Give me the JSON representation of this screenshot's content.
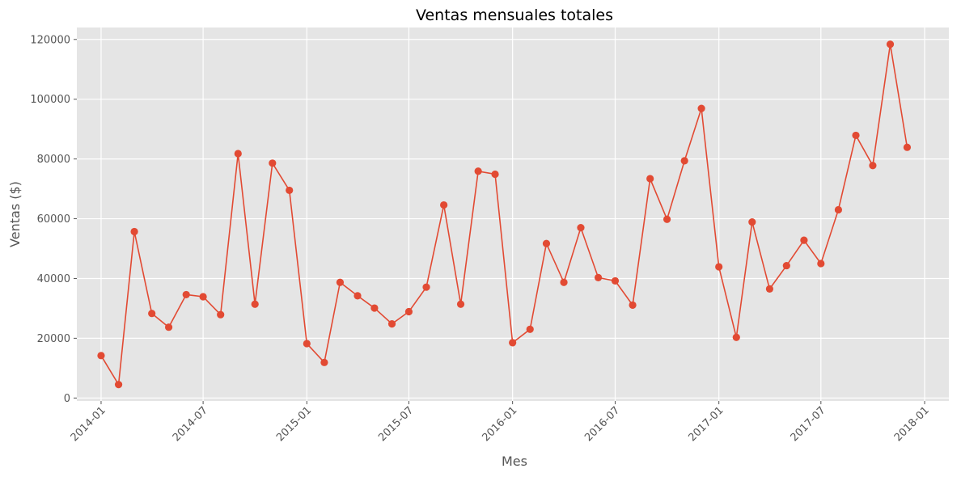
{
  "chart_data": {
    "type": "line",
    "title": "Ventas mensuales totales",
    "xlabel": "Mes",
    "ylabel": "Ventas ($)",
    "x": [
      "2014-01",
      "2014-02",
      "2014-03",
      "2014-04",
      "2014-05",
      "2014-06",
      "2014-07",
      "2014-08",
      "2014-09",
      "2014-10",
      "2014-11",
      "2014-12",
      "2015-01",
      "2015-02",
      "2015-03",
      "2015-04",
      "2015-05",
      "2015-06",
      "2015-07",
      "2015-08",
      "2015-09",
      "2015-10",
      "2015-11",
      "2015-12",
      "2016-01",
      "2016-02",
      "2016-03",
      "2016-04",
      "2016-05",
      "2016-06",
      "2016-07",
      "2016-08",
      "2016-09",
      "2016-10",
      "2016-11",
      "2016-12",
      "2017-01",
      "2017-02",
      "2017-03",
      "2017-04",
      "2017-05",
      "2017-06",
      "2017-07",
      "2017-08",
      "2017-09",
      "2017-10",
      "2017-11",
      "2017-12"
    ],
    "series": [
      {
        "values": [
          14200,
          4500,
          55700,
          28300,
          23700,
          34600,
          33900,
          27900,
          81800,
          31400,
          78600,
          69500,
          18200,
          11900,
          38700,
          34200,
          30100,
          24800,
          28900,
          37100,
          64600,
          31400,
          75900,
          74900,
          18500,
          23000,
          51700,
          38700,
          57000,
          40300,
          39200,
          31100,
          73400,
          59800,
          79400,
          96900,
          43900,
          20300,
          58900,
          36500,
          44300,
          52800,
          45000,
          63000,
          87900,
          77800,
          118400,
          83900
        ],
        "color": "#E24A33"
      }
    ],
    "ylim": [
      -1000,
      124000
    ],
    "xlim": [
      "2013-11-19",
      "2018-02-13"
    ],
    "y_ticks": [
      "0",
      "20000",
      "40000",
      "60000",
      "80000",
      "100000",
      "120000"
    ],
    "x_ticks": [
      "2014-01",
      "2014-07",
      "2015-01",
      "2015-07",
      "2016-01",
      "2016-07",
      "2017-01",
      "2017-07",
      "2018-01"
    ],
    "grid": true,
    "background": "#E5E5E5"
  }
}
